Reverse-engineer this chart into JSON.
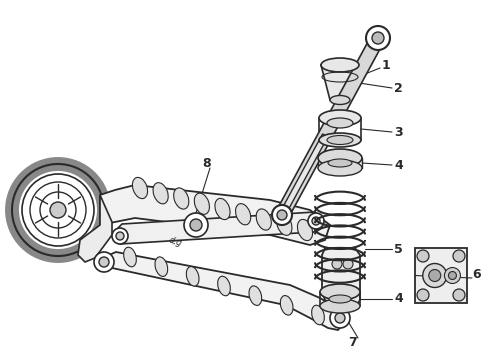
{
  "background_color": "#ffffff",
  "line_color": "#2a2a2a",
  "figsize": [
    4.9,
    3.6
  ],
  "dpi": 100,
  "xlim": [
    0,
    490
  ],
  "ylim": [
    0,
    360
  ]
}
